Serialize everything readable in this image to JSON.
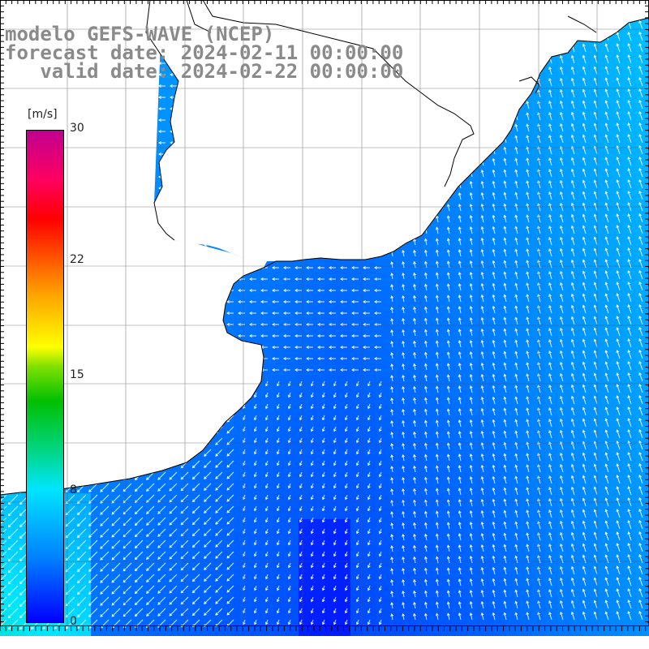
{
  "title": {
    "line1": "modelo GEFS-WAVE (NCEP)",
    "line2": "forecast date: 2024-02-11 00:00:00",
    "line3": "   valid date: 2024-02-22 00:00:00"
  },
  "colorbar": {
    "units": "[m/s]",
    "ticks": [
      {
        "label": "30",
        "value": 30
      },
      {
        "label": "22",
        "value": 22
      },
      {
        "label": "15",
        "value": 15
      },
      {
        "label": "8",
        "value": 8
      },
      {
        "label": "0",
        "value": 0
      }
    ],
    "min": 0,
    "max": 30
  },
  "colors": {
    "land": "#ffffff",
    "coastline": "#000000",
    "grid": "#555555",
    "arrows": "#ffffff",
    "title_text": "#8a8a8a"
  }
}
